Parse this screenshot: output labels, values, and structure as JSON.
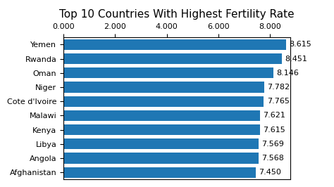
{
  "chart_data": {
    "type": "bar",
    "orientation": "horizontal",
    "title": "Top 10 Countries With Highest Fertility Rate",
    "categories": [
      "Yemen",
      "Rwanda",
      "Oman",
      "Niger",
      "Cote d'Ivoire",
      "Malawi",
      "Kenya",
      "Libya",
      "Angola",
      "Afghanistan"
    ],
    "values": [
      8.615,
      8.451,
      8.146,
      7.782,
      7.765,
      7.621,
      7.615,
      7.569,
      7.568,
      7.45
    ],
    "value_labels": [
      "8.615",
      "8.451",
      "8.146",
      "7.782",
      "7.765",
      "7.621",
      "7.615",
      "7.569",
      "7.568",
      "7.450"
    ],
    "data_labels": true,
    "xlim": [
      0,
      8.8
    ],
    "xticks": [
      {
        "value": 0,
        "label": "0.000"
      },
      {
        "value": 2,
        "label": "2.000"
      },
      {
        "value": 4,
        "label": "4.000"
      },
      {
        "value": 6,
        "label": "6.000"
      },
      {
        "value": 8,
        "label": "8.000"
      }
    ],
    "grid": false
  }
}
